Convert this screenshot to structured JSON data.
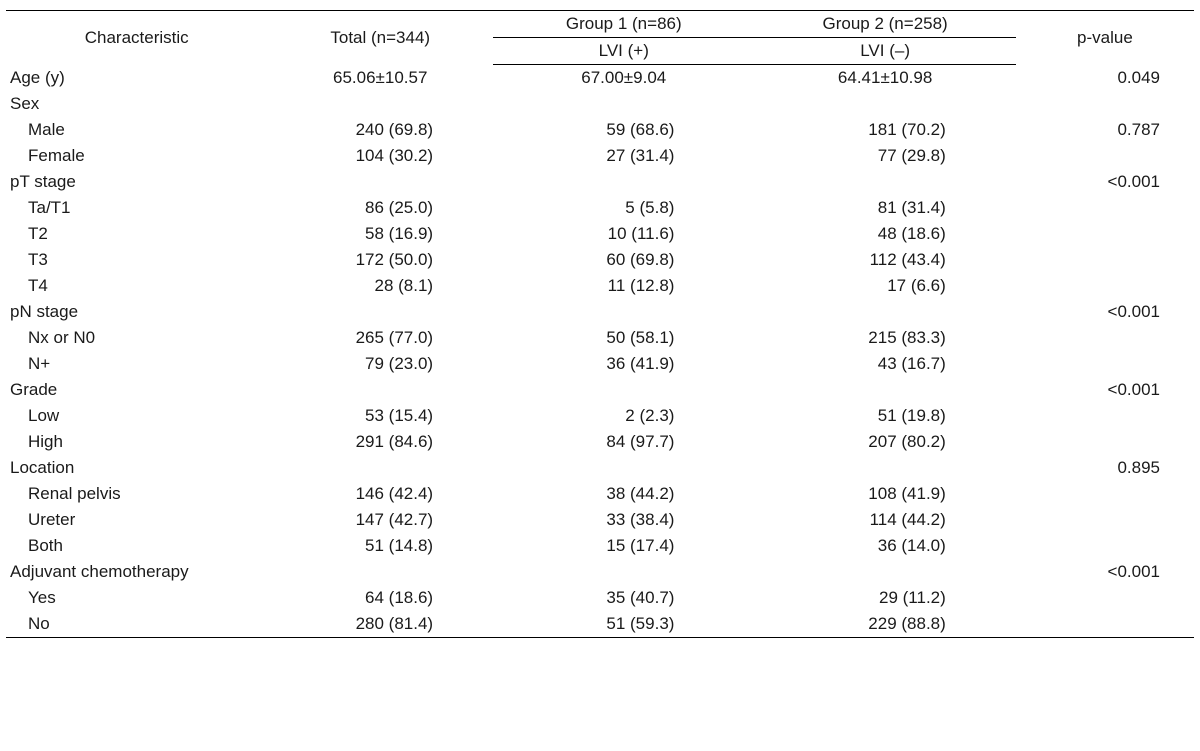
{
  "header": {
    "characteristic": "Characteristic",
    "total": "Total (n=344)",
    "group1": "Group 1 (n=86)",
    "group2": "Group 2 (n=258)",
    "lvi_pos": "LVI (+)",
    "lvi_neg": "LVI (–)",
    "pvalue": "p-value"
  },
  "rows": {
    "age": {
      "label": "Age (y)",
      "total": "65.06±10.57",
      "g1": "67.00±9.04",
      "g2": "64.41±10.98",
      "p": "0.049"
    },
    "sex": {
      "label": "Sex"
    },
    "sex_m": {
      "label": "Male",
      "total": "240 (69.8)",
      "g1": "59 (68.6)",
      "g2": "181 (70.2)",
      "p": "0.787"
    },
    "sex_f": {
      "label": "Female",
      "total": "104 (30.2)",
      "g1": "27 (31.4)",
      "g2": "77 (29.8)"
    },
    "pt": {
      "label": "pT stage",
      "p": "<0.001"
    },
    "pt_ta": {
      "label": "Ta/T1",
      "total": "86 (25.0)",
      "g1": "5 (5.8)",
      "g2": "81 (31.4)"
    },
    "pt_t2": {
      "label": "T2",
      "total": "58 (16.9)",
      "g1": "10 (11.6)",
      "g2": "48 (18.6)"
    },
    "pt_t3": {
      "label": "T3",
      "total": "172 (50.0)",
      "g1": "60 (69.8)",
      "g2": "112 (43.4)"
    },
    "pt_t4": {
      "label": "T4",
      "total": "28 (8.1)",
      "g1": "11 (12.8)",
      "g2": "17 (6.6)"
    },
    "pn": {
      "label": "pN stage",
      "p": "<0.001"
    },
    "pn_n0": {
      "label": "Nx or N0",
      "total": "265 (77.0)",
      "g1": "50 (58.1)",
      "g2": "215 (83.3)"
    },
    "pn_np": {
      "label": "N+",
      "total": "79 (23.0)",
      "g1": "36 (41.9)",
      "g2": "43 (16.7)"
    },
    "grade": {
      "label": "Grade",
      "p": "<0.001"
    },
    "grade_l": {
      "label": "Low",
      "total": "53 (15.4)",
      "g1": "2 (2.3)",
      "g2": "51 (19.8)"
    },
    "grade_h": {
      "label": "High",
      "total": "291 (84.6)",
      "g1": "84 (97.7)",
      "g2": "207 (80.2)"
    },
    "loc": {
      "label": "Location",
      "p": "0.895"
    },
    "loc_rp": {
      "label": "Renal pelvis",
      "total": "146 (42.4)",
      "g1": "38 (44.2)",
      "g2": "108 (41.9)"
    },
    "loc_ur": {
      "label": "Ureter",
      "total": "147 (42.7)",
      "g1": "33 (38.4)",
      "g2": "114 (44.2)"
    },
    "loc_bo": {
      "label": "Both",
      "total": "51 (14.8)",
      "g1": "15 (17.4)",
      "g2": "36 (14.0)"
    },
    "adj": {
      "label": "Adjuvant chemotherapy",
      "p": "<0.001"
    },
    "adj_y": {
      "label": "Yes",
      "total": "64 (18.6)",
      "g1": "35 (40.7)",
      "g2": "29 (11.2)"
    },
    "adj_n": {
      "label": "No",
      "total": "280 (81.4)",
      "g1": "51 (59.3)",
      "g2": "229 (88.8)"
    }
  }
}
